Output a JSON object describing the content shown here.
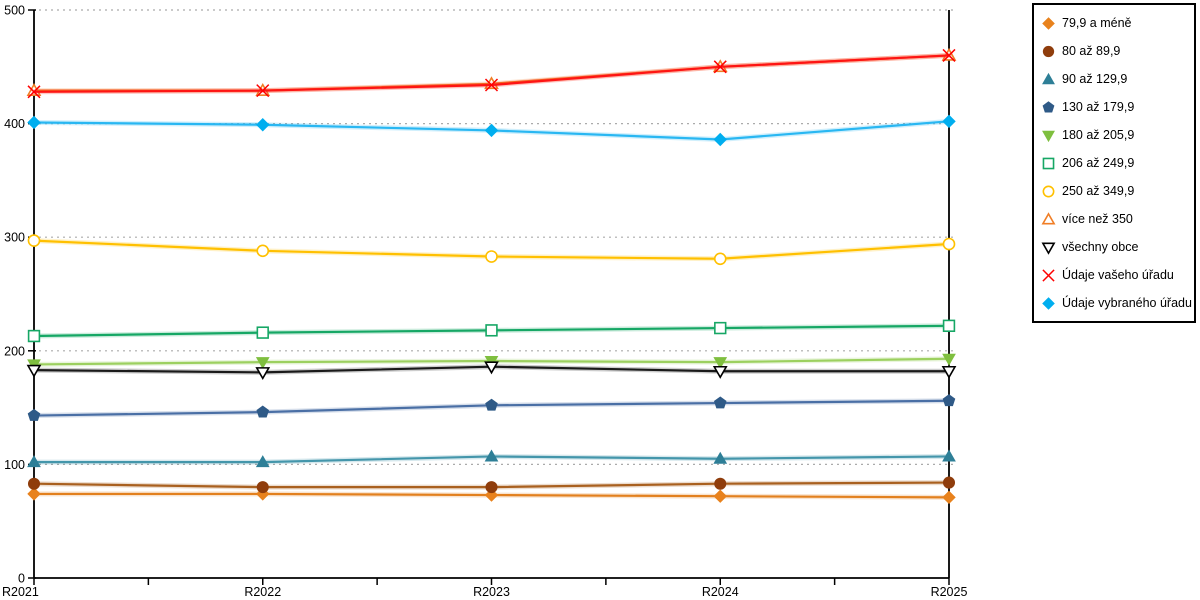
{
  "chart_data": {
    "type": "line",
    "title": "",
    "xlabel": "",
    "ylabel": "",
    "categories": [
      "R2021",
      "R2022",
      "R2023",
      "R2024",
      "R2025"
    ],
    "ylim": [
      0,
      500
    ],
    "yticks": [
      0,
      100,
      200,
      300,
      400,
      500
    ],
    "grid": {
      "horizontal": true,
      "style": "dashed",
      "color": "#ABABAB"
    },
    "axis_color": "#000000",
    "legend_position": "outside-top-right",
    "series": [
      {
        "name": "79,9 a méně",
        "marker": "diamond",
        "marker_fill": "filled",
        "marker_color": "#E8821D",
        "line_color": "#E2801E",
        "values": [
          74,
          74,
          73,
          72,
          71
        ]
      },
      {
        "name": "80 až 89,9",
        "marker": "circle",
        "marker_fill": "filled",
        "marker_color": "#8F3D0C",
        "line_color": "#A9601F",
        "values": [
          83,
          80,
          80,
          83,
          84
        ]
      },
      {
        "name": "90 až 129,9",
        "marker": "triangle-up",
        "marker_fill": "filled",
        "marker_color": "#2E7F97",
        "line_color": "#4496AB",
        "values": [
          102,
          102,
          107,
          105,
          107
        ]
      },
      {
        "name": "130 až 179,9",
        "marker": "pentagon",
        "marker_fill": "filled",
        "marker_color": "#2F5A87",
        "line_color": "#4A6FA5",
        "values": [
          143,
          146,
          152,
          154,
          156
        ]
      },
      {
        "name": "180 až 205,9",
        "marker": "triangle-down",
        "marker_fill": "filled",
        "marker_color": "#7FBF3F",
        "line_color": "#9CD05F",
        "values": [
          188,
          190,
          191,
          190,
          193
        ]
      },
      {
        "name": "206 až 249,9",
        "marker": "square",
        "marker_fill": "open",
        "marker_color": "#16A765",
        "line_color": "#16A765",
        "values": [
          213,
          216,
          218,
          220,
          222
        ]
      },
      {
        "name": "250 až 349,9",
        "marker": "circle",
        "marker_fill": "open",
        "marker_color": "#FFC000",
        "line_color": "#FFC000",
        "values": [
          297,
          288,
          283,
          281,
          294
        ]
      },
      {
        "name": "více než 350",
        "marker": "triangle-up",
        "marker_fill": "open",
        "marker_color": "#F07E26",
        "line_color": "#F07E26",
        "values": [
          429,
          429,
          435,
          450,
          460
        ]
      },
      {
        "name": "všechny obce",
        "marker": "triangle-down",
        "marker_fill": "open",
        "marker_color": "#000000",
        "line_color": "#1A1A1A",
        "values": [
          183,
          181,
          186,
          182,
          182
        ]
      },
      {
        "name": "Údaje vašeho úřadu",
        "marker": "x",
        "marker_fill": "open",
        "marker_color": "#FE0000",
        "line_color": "#FE1414",
        "values": [
          428,
          429,
          434,
          450,
          460
        ]
      },
      {
        "name": "Údaje vybraného úřadu",
        "marker": "diamond",
        "marker_fill": "filled",
        "marker_color": "#00AEEF",
        "line_color": "#29B7F2",
        "values": [
          401,
          399,
          394,
          386,
          402
        ]
      }
    ]
  }
}
